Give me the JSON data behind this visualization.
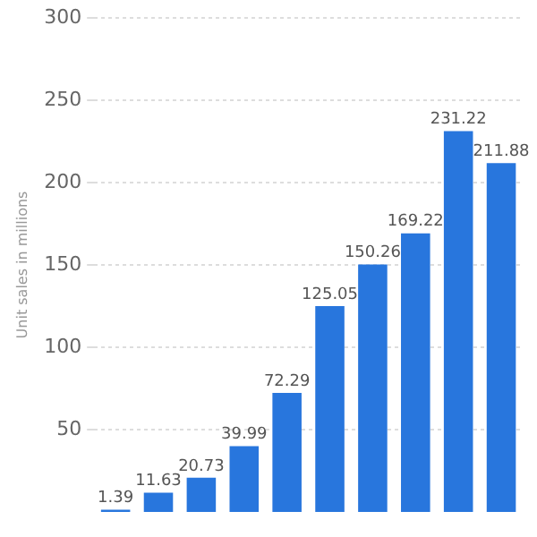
{
  "chart_data": {
    "type": "bar",
    "ylabel": "Unit sales in millions",
    "categories": [
      null,
      null,
      null,
      null,
      null,
      null,
      null,
      null,
      null,
      null
    ],
    "values": [
      1.39,
      11.63,
      20.73,
      39.99,
      72.29,
      125.05,
      150.26,
      169.22,
      231.22,
      211.88
    ],
    "color": "#2876dd",
    "ylim": [
      0,
      300
    ],
    "yticks": [
      50,
      100,
      150,
      200,
      250,
      300
    ],
    "grid": "y",
    "data_labels": true,
    "tick_labels": "y"
  }
}
